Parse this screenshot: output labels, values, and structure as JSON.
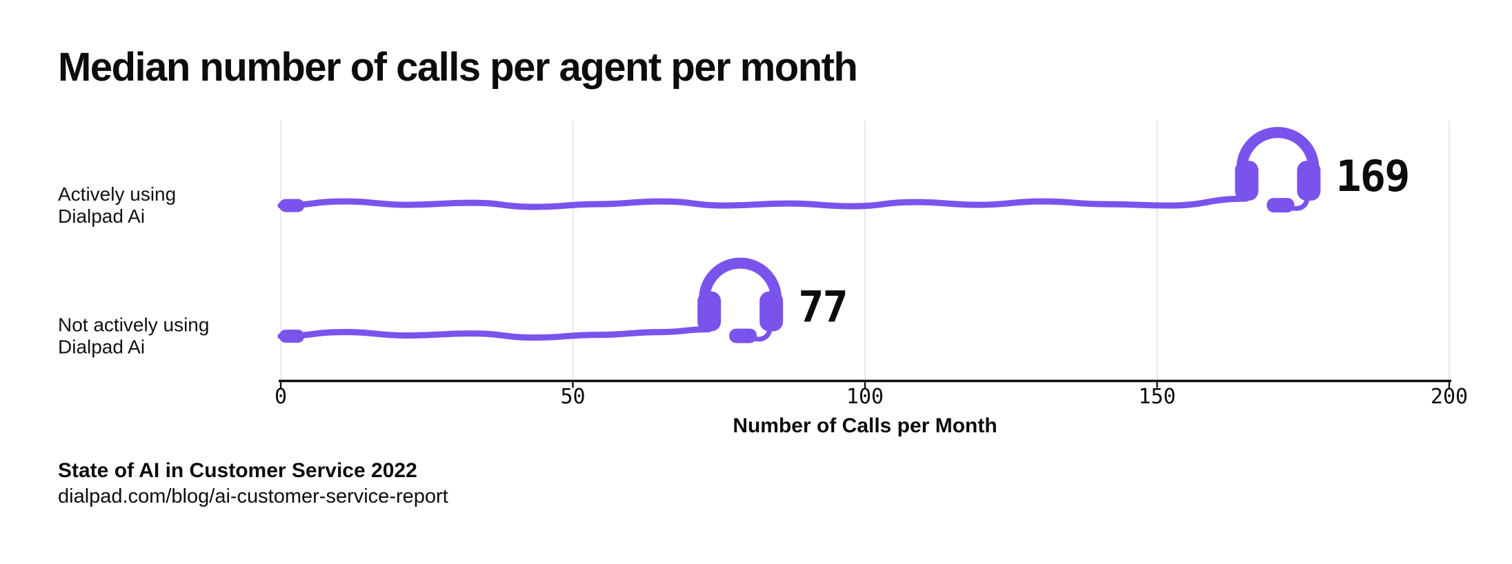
{
  "chart_data": {
    "type": "bar",
    "orientation": "horizontal",
    "title": "Median number of calls per agent per month",
    "categories": [
      "Actively using\nDialpad Ai",
      "Not actively using\nDialpad Ai"
    ],
    "values": [
      169,
      77
    ],
    "value_labels": [
      "169",
      "77"
    ],
    "xlabel": "Number of Calls per Month",
    "xlim": [
      0,
      200
    ],
    "xticks": [
      0,
      50,
      100,
      150,
      200
    ],
    "grid": "vertical gridlines at xticks",
    "legend": "none",
    "marker": "headset icon at end of each squiggly connector line",
    "accent_color": "#7A53EC",
    "gridline_color": "#E3E3E6",
    "axis_color": "#0D0D0D",
    "text_color": "#0D0D0D"
  },
  "footer": {
    "source_title": "State of AI in Customer Service 2022",
    "source_url": "dialpad.com/blog/ai-customer-service-report"
  }
}
